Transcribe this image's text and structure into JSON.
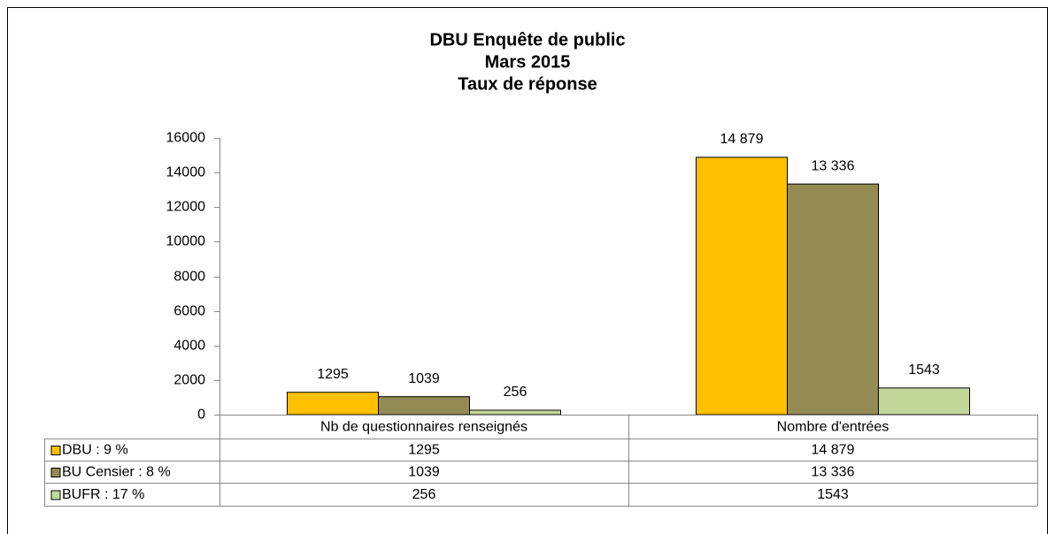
{
  "chart_data": {
    "type": "bar",
    "title": [
      "DBU Enquête de public",
      "Mars 2015",
      "Taux de réponse"
    ],
    "categories": [
      "Nb de questionnaires renseignés",
      "Nombre d'entrées"
    ],
    "series": [
      {
        "name": "DBU : 9 %",
        "color": "#FFC000",
        "values": [
          1295,
          14879
        ],
        "value_labels": [
          "1295",
          "14 879"
        ]
      },
      {
        "name": "BU Censier : 8 %",
        "color": "#948A54",
        "values": [
          1039,
          13336
        ],
        "value_labels": [
          "1039",
          "13 336"
        ]
      },
      {
        "name": "BUFR : 17 %",
        "color": "#C4D79B",
        "values": [
          256,
          1543
        ],
        "value_labels": [
          "256",
          "1543"
        ]
      }
    ],
    "ylim": [
      0,
      16000
    ],
    "yticks": [
      0,
      2000,
      4000,
      6000,
      8000,
      10000,
      12000,
      14000,
      16000
    ],
    "data_table": true
  }
}
